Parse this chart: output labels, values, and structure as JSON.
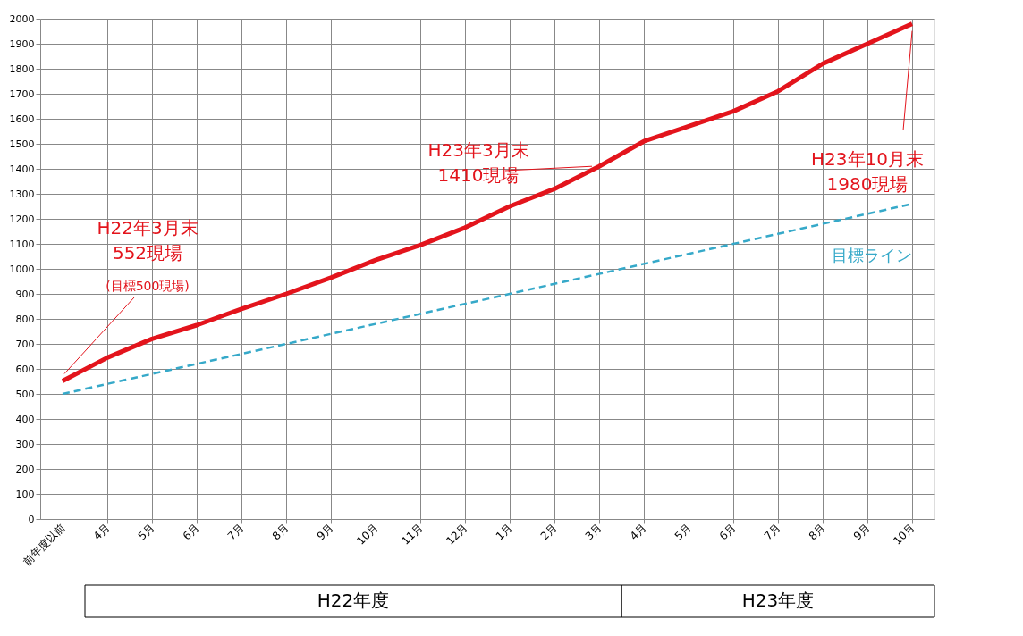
{
  "chart_data": {
    "type": "line",
    "categories": [
      "前年度以前",
      "4月",
      "5月",
      "6月",
      "7月",
      "8月",
      "9月",
      "10月",
      "11月",
      "12月",
      "1月",
      "2月",
      "3月",
      "4月",
      "5月",
      "6月",
      "7月",
      "8月",
      "9月",
      "10月"
    ],
    "series": [
      {
        "color": "#e3141c",
        "line_style": "solid",
        "values": [
          552,
          645,
          720,
          775,
          840,
          900,
          965,
          1035,
          1095,
          1165,
          1250,
          1320,
          1410,
          1510,
          1570,
          1630,
          1710,
          1820,
          1900,
          1980
        ]
      },
      {
        "name": "目標ライン",
        "color": "#36a9c9",
        "line_style": "dashed",
        "values": [
          500,
          540,
          580,
          620,
          660,
          700,
          740,
          780,
          820,
          860,
          900,
          940,
          980,
          1020,
          1060,
          1100,
          1140,
          1180,
          1220,
          1260
        ]
      }
    ],
    "ylim": [
      0,
      2000
    ],
    "yticks": [
      0,
      100,
      200,
      300,
      400,
      500,
      600,
      700,
      800,
      900,
      1000,
      1100,
      1200,
      1300,
      1400,
      1500,
      1600,
      1700,
      1800,
      1900,
      2000
    ],
    "grid": true,
    "marker": "none",
    "annotations": [
      "H22年3月末\n552現場",
      {
        "text": "(目標500現場)",
        "x": "前年度以前",
        "y": 552
      },
      {
        "text": "H23年3月末\n1410現場",
        "x": "3月",
        "y": 1410
      },
      "H23年10月末\n1980現場",
      "H22年度",
      "H23年度"
    ]
  }
}
